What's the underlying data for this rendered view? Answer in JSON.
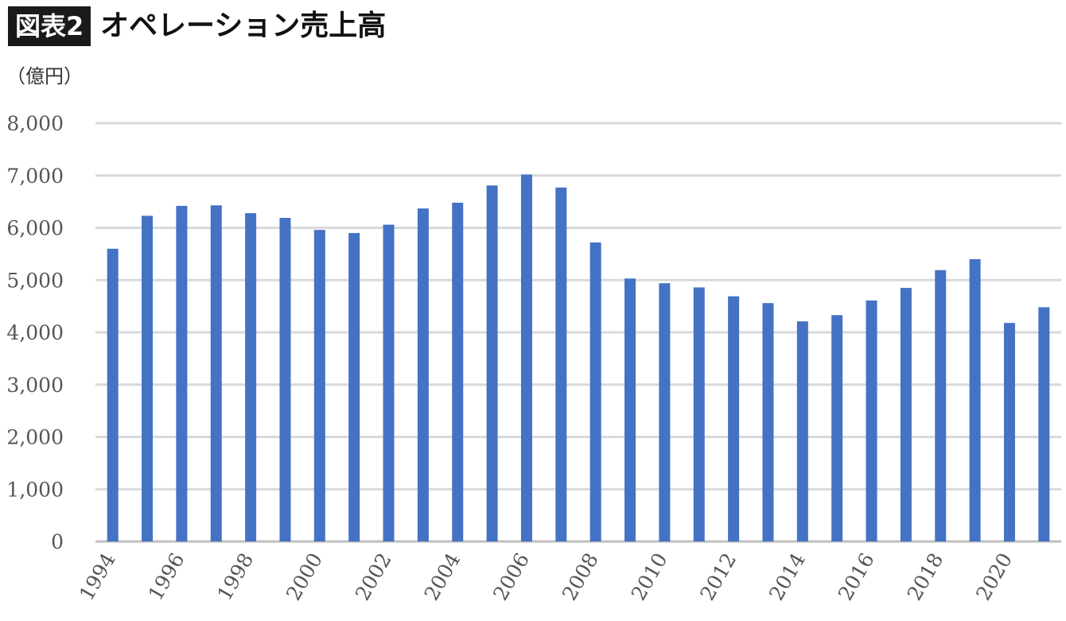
{
  "header": {
    "figure_label": "図表2",
    "title": "オペレーション売上高"
  },
  "chart_data": {
    "type": "bar",
    "title": "オペレーション売上高",
    "unit": "（億円）",
    "color": "#4472c4",
    "grid": true,
    "ylim": [
      0,
      8000
    ],
    "yticks": [
      "0",
      "1,000",
      "2,000",
      "3,000",
      "4,000",
      "5,000",
      "6,000",
      "7,000",
      "8,000"
    ],
    "xtick_labels": [
      "1994",
      "1996",
      "1998",
      "2000",
      "2002",
      "2004",
      "2006",
      "2008",
      "2010",
      "2012",
      "2014",
      "2016",
      "2018",
      "2020"
    ],
    "categories": [
      "1994",
      "1995",
      "1996",
      "1997",
      "1998",
      "1999",
      "2000",
      "2001",
      "2002",
      "2003",
      "2004",
      "2005",
      "2006",
      "2007",
      "2008",
      "2009",
      "2010",
      "2011",
      "2012",
      "2013",
      "2014",
      "2015",
      "2016",
      "2017",
      "2018",
      "2019",
      "2020",
      "2021"
    ],
    "values": [
      5600,
      6230,
      6420,
      6430,
      6280,
      6190,
      5960,
      5900,
      6060,
      6370,
      6480,
      6810,
      7020,
      6770,
      5720,
      5030,
      4940,
      4860,
      4690,
      4560,
      4210,
      4330,
      4610,
      4850,
      5190,
      5400,
      4180,
      4480
    ]
  }
}
